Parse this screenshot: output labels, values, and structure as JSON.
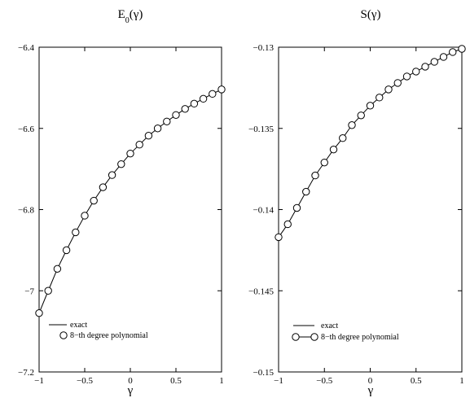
{
  "chart_data": [
    {
      "type": "line",
      "title": "E₀(γ)",
      "title_main": "E",
      "title_sub": "0",
      "title_arg": "(γ)",
      "xlabel": "γ",
      "ylabel": "",
      "xlim": [
        -1,
        1
      ],
      "ylim": [
        -7.2,
        -6.4
      ],
      "xticks": [
        -1,
        -0.5,
        0,
        0.5,
        1
      ],
      "xtick_labels": [
        "−1",
        "−0.5",
        "0",
        "0.5",
        "1"
      ],
      "yticks": [
        -7.2,
        -7.0,
        -6.8,
        -6.6,
        -6.4
      ],
      "ytick_labels": [
        "−7.2",
        "−7",
        "−6.8",
        "−6.6",
        "−6.4"
      ],
      "grid": false,
      "legend_position": "bottom-left",
      "series": [
        {
          "name": "exact",
          "style": "solid-line",
          "x": [
            -1,
            -0.9,
            -0.8,
            -0.7,
            -0.6,
            -0.5,
            -0.4,
            -0.3,
            -0.2,
            -0.1,
            0,
            0.1,
            0.2,
            0.3,
            0.4,
            0.5,
            0.6,
            0.7,
            0.8,
            0.9,
            1
          ],
          "y": [
            -7.055,
            -7.0,
            -6.946,
            -6.9,
            -6.856,
            -6.815,
            -6.778,
            -6.745,
            -6.715,
            -6.688,
            -6.662,
            -6.64,
            -6.618,
            -6.6,
            -6.583,
            -6.567,
            -6.552,
            -6.539,
            -6.527,
            -6.515,
            -6.504
          ]
        },
        {
          "name": "8−th degree polynomial",
          "style": "open-circles",
          "x": [
            -1,
            -0.9,
            -0.8,
            -0.7,
            -0.6,
            -0.5,
            -0.4,
            -0.3,
            -0.2,
            -0.1,
            0,
            0.1,
            0.2,
            0.3,
            0.4,
            0.5,
            0.6,
            0.7,
            0.8,
            0.9,
            1
          ],
          "y": [
            -7.055,
            -7.0,
            -6.946,
            -6.9,
            -6.856,
            -6.815,
            -6.778,
            -6.745,
            -6.715,
            -6.688,
            -6.662,
            -6.64,
            -6.618,
            -6.6,
            -6.583,
            -6.567,
            -6.552,
            -6.539,
            -6.527,
            -6.515,
            -6.504
          ]
        }
      ]
    },
    {
      "type": "line",
      "title": "S(γ)",
      "title_main": "S",
      "title_sub": "",
      "title_arg": "(γ)",
      "xlabel": "γ",
      "ylabel": "",
      "xlim": [
        -1,
        1
      ],
      "ylim": [
        -0.15,
        -0.13
      ],
      "xticks": [
        -1,
        -0.5,
        0,
        0.5,
        1
      ],
      "xtick_labels": [
        "−1",
        "−0.5",
        "0",
        "0.5",
        "1"
      ],
      "yticks": [
        -0.15,
        -0.145,
        -0.14,
        -0.135,
        -0.13
      ],
      "ytick_labels": [
        "−0.15",
        "−0.145",
        "−0.14",
        "−0.135",
        "−0.13"
      ],
      "grid": false,
      "legend_position": "bottom-left",
      "series": [
        {
          "name": "exact",
          "style": "solid-line",
          "x": [
            -1,
            -0.9,
            -0.8,
            -0.7,
            -0.6,
            -0.5,
            -0.4,
            -0.3,
            -0.2,
            -0.1,
            0,
            0.1,
            0.2,
            0.3,
            0.4,
            0.5,
            0.6,
            0.7,
            0.8,
            0.9,
            1
          ],
          "y": [
            -0.1417,
            -0.1409,
            -0.1399,
            -0.1389,
            -0.1379,
            -0.1371,
            -0.1363,
            -0.1356,
            -0.1348,
            -0.1342,
            -0.1336,
            -0.1331,
            -0.1326,
            -0.1322,
            -0.1318,
            -0.1315,
            -0.1312,
            -0.1309,
            -0.1306,
            -0.1303,
            -0.1301
          ]
        },
        {
          "name": "8−th degree polynomial",
          "style": "open-circles-with-line",
          "x": [
            -1,
            -0.9,
            -0.8,
            -0.7,
            -0.6,
            -0.5,
            -0.4,
            -0.3,
            -0.2,
            -0.1,
            0,
            0.1,
            0.2,
            0.3,
            0.4,
            0.5,
            0.6,
            0.7,
            0.8,
            0.9,
            1
          ],
          "y": [
            -0.1417,
            -0.1409,
            -0.1399,
            -0.1389,
            -0.1379,
            -0.1371,
            -0.1363,
            -0.1356,
            -0.1348,
            -0.1342,
            -0.1336,
            -0.1331,
            -0.1326,
            -0.1322,
            -0.1318,
            -0.1315,
            -0.1312,
            -0.1309,
            -0.1306,
            -0.1303,
            -0.1301
          ]
        }
      ]
    }
  ]
}
